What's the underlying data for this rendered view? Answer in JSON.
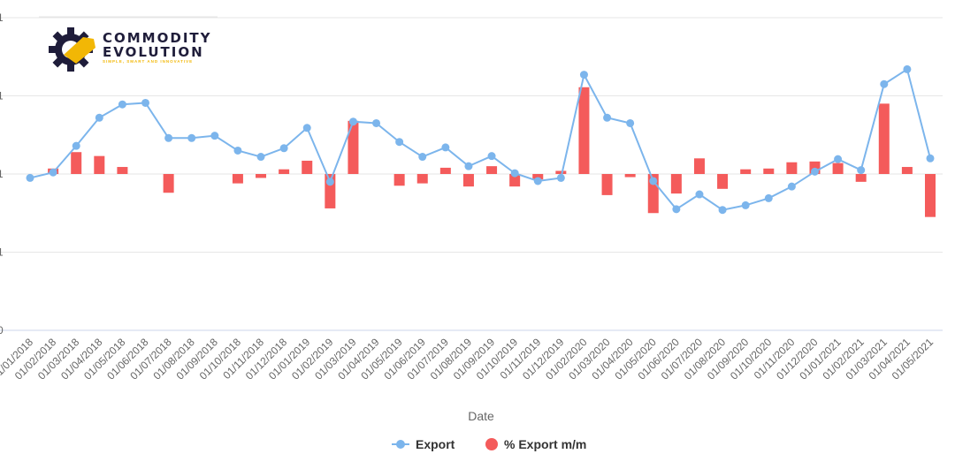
{
  "logo": {
    "line1": "COMMODITY",
    "line2": "EVOLUTION",
    "tagline": "SIMPLE, SMART AND INNOVATIVE",
    "colors": {
      "gear": "#1f1d3a",
      "accent": "#f2b705"
    }
  },
  "chart_data": {
    "type": "bar",
    "xlabel": "Date",
    "categories": [
      "01/01/2018",
      "01/02/2018",
      "01/03/2018",
      "01/04/2018",
      "01/05/2018",
      "01/06/2018",
      "01/07/2018",
      "01/08/2018",
      "01/09/2018",
      "01/10/2018",
      "01/11/2018",
      "01/12/2018",
      "01/01/2019",
      "01/02/2019",
      "01/03/2019",
      "01/04/2019",
      "01/05/2019",
      "01/06/2019",
      "01/07/2019",
      "01/08/2019",
      "01/09/2019",
      "01/10/2019",
      "01/11/2019",
      "01/12/2019",
      "01/02/2020",
      "01/03/2020",
      "01/04/2020",
      "01/05/2020",
      "01/06/2020",
      "01/07/2020",
      "01/08/2020",
      "01/09/2020",
      "01/10/2020",
      "01/11/2020",
      "01/12/2020",
      "01/01/2021",
      "01/02/2021",
      "01/03/2021",
      "01/04/2021",
      "01/05/2021"
    ],
    "yaxis_ticks_visible": [
      "1",
      "1",
      "1",
      "1",
      "0"
    ],
    "grid": true,
    "legend": "bottom-center",
    "series": [
      {
        "name": "Export",
        "kind": "line",
        "color": "#7cb5ec",
        "values": [
          -0.05,
          0.02,
          0.36,
          0.72,
          0.89,
          0.91,
          0.46,
          0.46,
          0.49,
          0.3,
          0.22,
          0.33,
          0.59,
          -0.1,
          0.67,
          0.65,
          0.41,
          0.22,
          0.34,
          0.1,
          0.23,
          0.01,
          -0.09,
          -0.05,
          1.27,
          0.72,
          0.65,
          -0.09,
          -0.45,
          -0.26,
          -0.46,
          -0.4,
          -0.31,
          -0.16,
          0.03,
          0.19,
          0.05,
          1.15,
          1.34,
          0.2
        ]
      },
      {
        "name": "% Export m/m",
        "kind": "bar",
        "color": "#f45b5b",
        "values": [
          0.0,
          0.07,
          0.28,
          0.23,
          0.09,
          0.0,
          -0.24,
          0.0,
          0.0,
          -0.12,
          -0.05,
          0.06,
          0.17,
          -0.44,
          0.68,
          0.0,
          -0.15,
          -0.12,
          0.08,
          -0.16,
          0.1,
          -0.16,
          -0.07,
          0.04,
          1.11,
          -0.27,
          -0.04,
          -0.5,
          -0.25,
          0.2,
          -0.19,
          0.06,
          0.07,
          0.15,
          0.16,
          0.14,
          -0.1,
          0.9,
          0.09,
          -0.55
        ]
      }
    ]
  }
}
